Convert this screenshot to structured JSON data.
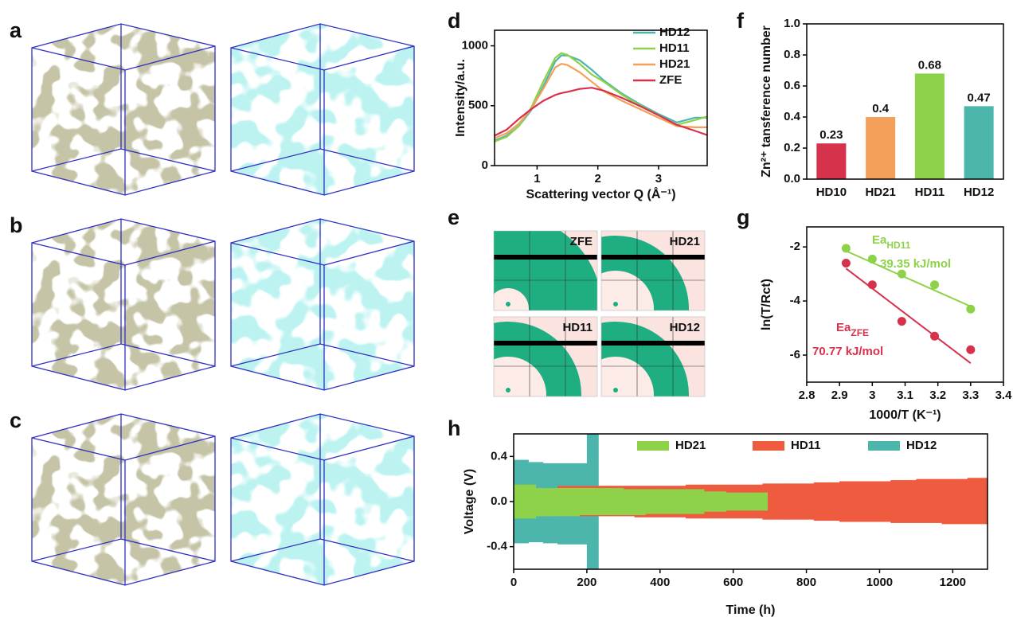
{
  "panel_labels": [
    "a",
    "b",
    "c",
    "d",
    "e",
    "f",
    "g",
    "h"
  ],
  "scattering_patterns": [
    "ZFE",
    "HD21",
    "HD11",
    "HD12"
  ],
  "chart_data": [
    {
      "type": "line",
      "x_label": "Scattering vector Q (Å⁻¹)",
      "y_label": "Intensity/a.u.",
      "x": [
        0.3,
        0.5,
        0.7,
        0.9,
        1.1,
        1.3,
        1.4,
        1.5,
        1.7,
        1.9,
        2.1,
        2.4,
        2.7,
        3.0,
        3.3,
        3.6,
        3.8
      ],
      "series": [
        {
          "name": "HD12",
          "color": "#4db6ac",
          "values": [
            210,
            250,
            330,
            460,
            660,
            870,
            920,
            920,
            880,
            800,
            710,
            600,
            510,
            430,
            360,
            400,
            400
          ]
        },
        {
          "name": "HD11",
          "color": "#8ed24a",
          "values": [
            200,
            240,
            330,
            480,
            700,
            900,
            940,
            925,
            850,
            760,
            700,
            590,
            500,
            420,
            340,
            380,
            410
          ]
        },
        {
          "name": "HD21",
          "color": "#f5a05a",
          "values": [
            230,
            270,
            350,
            470,
            640,
            820,
            850,
            840,
            780,
            700,
            620,
            540,
            470,
            400,
            330,
            320,
            320
          ]
        },
        {
          "name": "ZFE",
          "color": "#d6324c",
          "values": [
            250,
            300,
            390,
            470,
            540,
            590,
            605,
            615,
            640,
            650,
            625,
            565,
            495,
            420,
            340,
            290,
            255
          ]
        }
      ],
      "xlim": [
        0.3,
        3.8
      ],
      "ylim": [
        0,
        1130
      ],
      "xticks": [
        1,
        2,
        3
      ],
      "yticks": [
        0,
        500,
        1000
      ],
      "legend": "upper right"
    },
    {
      "type": "bar",
      "y_label": "Zn²⁺ tansference number",
      "categories": [
        "HD10",
        "HD21",
        "HD11",
        "HD12"
      ],
      "values": [
        0.23,
        0.4,
        0.68,
        0.47
      ],
      "colors": [
        "#d6324c",
        "#f5a05a",
        "#8ed24a",
        "#4db6ac"
      ],
      "ylim": [
        0,
        1.0
      ],
      "yticks": [
        {
          "value": 0,
          "label": "0.0"
        },
        0.2,
        0.4,
        0.6,
        0.8,
        {
          "value": 1,
          "label": "1.0"
        }
      ]
    },
    {
      "type": "scatter",
      "x_label": "1000/T (K⁻¹)",
      "y_label": "ln(T/Rct)",
      "series": [
        {
          "name": "HD11",
          "color": "#8ed24a",
          "label_prefix": "Ea",
          "label_value": "39.35 kJ/mol",
          "x": [
            2.92,
            3.0,
            3.09,
            3.19,
            3.3
          ],
          "values": [
            -2.05,
            -2.45,
            -3.0,
            -3.4,
            -4.3
          ],
          "fit_x": [
            2.92,
            3.3
          ],
          "fit_y": [
            -2.15,
            -4.2
          ]
        },
        {
          "name": "ZFE",
          "color": "#d6324c",
          "label_prefix": "Ea",
          "label_value": "70.77 kJ/mol",
          "x": [
            2.92,
            3.0,
            3.09,
            3.19,
            3.3
          ],
          "values": [
            -2.6,
            -3.4,
            -4.75,
            -5.3,
            -5.8
          ],
          "fit_x": [
            2.92,
            3.3
          ],
          "fit_y": [
            -2.8,
            -6.3
          ]
        }
      ],
      "xlim": [
        2.8,
        3.4
      ],
      "ylim": [
        -7,
        -1.26
      ],
      "xticks": [
        2.8,
        2.9,
        3.0,
        3.1,
        3.2,
        3.3,
        3.4
      ],
      "yticks": [
        -2,
        -4,
        -6
      ]
    },
    {
      "type": "band",
      "x_label": "Time (h)",
      "y_label": "Voltage (V)",
      "series": [
        {
          "name": "HD21",
          "color": "#8ed24a",
          "x": [
            0,
            60,
            120,
            180,
            240,
            300,
            360,
            420,
            480,
            520,
            580,
            640,
            690
          ],
          "upper": [
            0.15,
            0.12,
            0.12,
            0.12,
            0.12,
            0.11,
            0.11,
            0.11,
            0.11,
            0.09,
            0.08,
            0.08,
            0.08
          ],
          "lower": [
            -0.15,
            -0.13,
            -0.13,
            -0.12,
            -0.12,
            -0.12,
            -0.11,
            -0.11,
            -0.11,
            -0.09,
            -0.08,
            -0.08,
            -0.08
          ]
        },
        {
          "name": "HD11",
          "color": "#ef5b3f",
          "x": [
            120,
            190,
            260,
            330,
            400,
            470,
            540,
            610,
            680,
            750,
            820,
            890,
            960,
            1030,
            1100,
            1170,
            1240,
            1290
          ],
          "upper": [
            0.14,
            0.14,
            0.14,
            0.14,
            0.14,
            0.15,
            0.15,
            0.15,
            0.16,
            0.16,
            0.17,
            0.18,
            0.18,
            0.19,
            0.2,
            0.2,
            0.21,
            0.21
          ],
          "lower": [
            -0.13,
            -0.13,
            -0.13,
            -0.14,
            -0.14,
            -0.15,
            -0.15,
            -0.15,
            -0.16,
            -0.16,
            -0.17,
            -0.18,
            -0.18,
            -0.19,
            -0.19,
            -0.2,
            -0.2,
            -0.2
          ]
        },
        {
          "name": "HD12",
          "color": "#4db6ac",
          "x": [
            0,
            40,
            80,
            120,
            160,
            190,
            200,
            215,
            228
          ],
          "upper": [
            0.37,
            0.35,
            0.34,
            0.34,
            0.34,
            0.34,
            0.6,
            0.6,
            0.6
          ],
          "lower": [
            -0.37,
            -0.36,
            -0.37,
            -0.38,
            -0.38,
            -0.38,
            -0.6,
            -0.6,
            -0.6
          ]
        }
      ],
      "xlim": [
        0,
        1295
      ],
      "ylim": [
        -0.6,
        0.6
      ],
      "xticks": [
        0,
        200,
        400,
        600,
        800,
        1000,
        1200
      ],
      "yticks": [
        -0.4,
        {
          "value": 0,
          "label": "0.0"
        },
        0.4
      ],
      "legend": "top"
    }
  ]
}
